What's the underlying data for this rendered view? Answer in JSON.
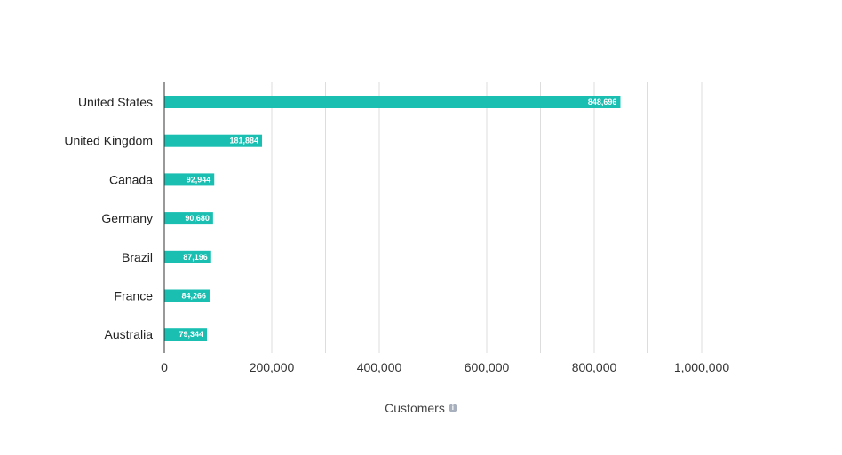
{
  "chart_data": {
    "type": "bar",
    "orientation": "horizontal",
    "categories": [
      "United States",
      "United Kingdom",
      "Canada",
      "Germany",
      "Brazil",
      "France",
      "Australia"
    ],
    "values": [
      848696,
      181884,
      92944,
      90680,
      87196,
      84266,
      79344
    ],
    "value_labels": [
      "848,696",
      "181,884",
      "92,944",
      "90,680",
      "87,196",
      "84,266",
      "79,344"
    ],
    "xlim": [
      0,
      1100000
    ],
    "x_ticks": [
      0,
      200000,
      400000,
      600000,
      800000,
      1000000
    ],
    "x_tick_labels": [
      "0",
      "200,000",
      "400,000",
      "600,000",
      "800,000",
      "1,000,000"
    ],
    "xlabel": "Customers",
    "grid": true,
    "bar_color": "#1abfb2",
    "grid_color": "#dddddd"
  },
  "axis_info_icon": "info-icon"
}
